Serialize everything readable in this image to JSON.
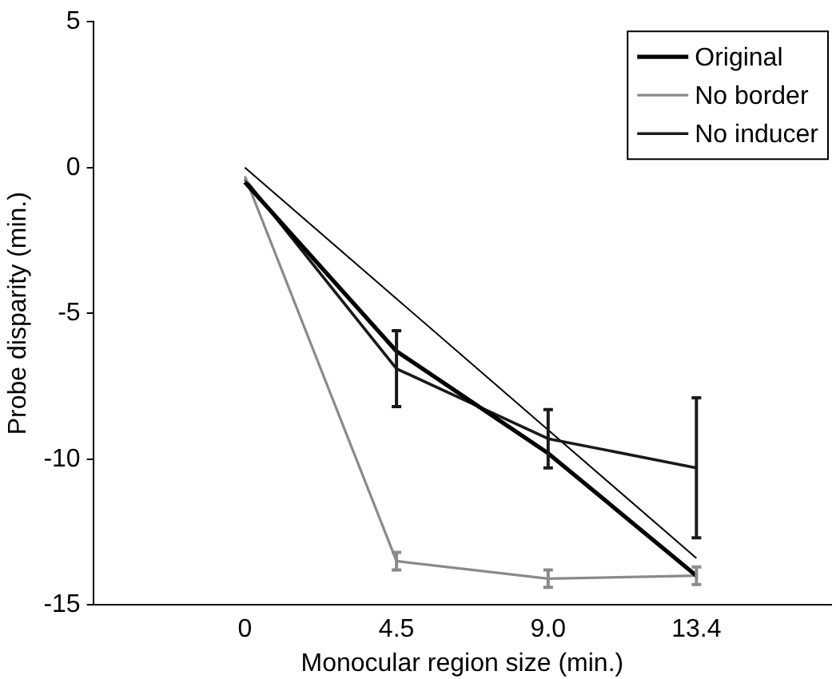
{
  "chart_data": {
    "type": "line",
    "xlabel": "Monocular region size (min.)",
    "ylabel": "Probe disparity (min.)",
    "x": [
      0,
      4.5,
      9.0,
      13.4
    ],
    "xlim": [
      -4.5,
      17.4
    ],
    "xticks": [
      0,
      4.5,
      {
        "value": 9.0,
        "label": "9.0"
      },
      13.4
    ],
    "ylim": [
      -15,
      5
    ],
    "yticks": [
      -15,
      -10,
      -5,
      0,
      5
    ],
    "series": [
      {
        "name": "Original",
        "color": "#000000",
        "values": [
          -0.5,
          -6.3,
          -9.8,
          -14.0
        ]
      },
      {
        "name": "No border",
        "color": "#8a8a8a",
        "values": [
          -0.3,
          -13.5,
          -14.1,
          -14.0
        ],
        "errors": [
          null,
          0.3,
          0.3,
          0.3
        ]
      },
      {
        "name": "No inducer",
        "color": "#1a1a1a",
        "values": [
          -0.4,
          -6.9,
          -9.3,
          -10.3
        ],
        "errors": [
          null,
          1.3,
          1.0,
          2.4
        ]
      },
      {
        "color": "#000000",
        "values": [
          0,
          -4.5,
          -9.0,
          -13.4
        ]
      }
    ],
    "legend": "top right",
    "grid": false,
    "marker": "none",
    "line_style": "solid"
  }
}
